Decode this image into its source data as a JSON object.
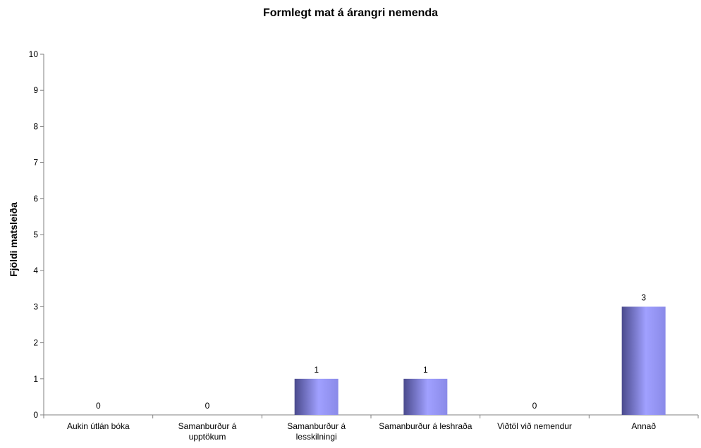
{
  "chart_data": {
    "type": "bar",
    "title": "Formlegt mat á árangri nemenda",
    "xlabel": "",
    "ylabel": "Fjöldi matsleiða",
    "ylim": [
      0,
      10
    ],
    "yticks": [
      0,
      1,
      2,
      3,
      4,
      5,
      6,
      7,
      8,
      9,
      10
    ],
    "categories": [
      [
        "Aukin útlán bóka"
      ],
      [
        "Samanburður á",
        "upptökum"
      ],
      [
        "Samanburður á",
        "lesskilningi"
      ],
      [
        "Samanburður á leshraða"
      ],
      [
        "Viðtöl við nemendur"
      ],
      [
        "Annað"
      ]
    ],
    "values": [
      0,
      0,
      1,
      1,
      0,
      3
    ],
    "data_labels": [
      "0",
      "0",
      "1",
      "1",
      "0",
      "3"
    ],
    "grid": false,
    "legend": "none",
    "colors": {
      "bar_light": "#a0a0ff",
      "bar_dark": "#4a4a8c",
      "axis": "#808080"
    }
  }
}
